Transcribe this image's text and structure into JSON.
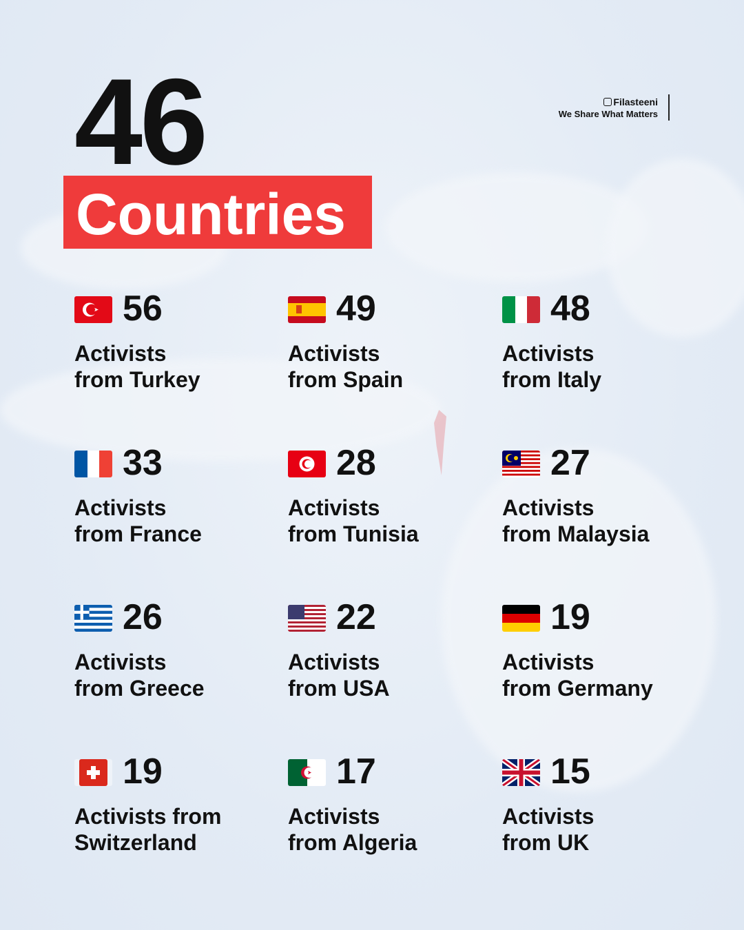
{
  "headline": {
    "number": "46",
    "word": "Countries"
  },
  "brand": {
    "handle": "Filasteeni",
    "tagline": "We Share What Matters",
    "icon": "instagram-icon"
  },
  "accent_color": "#ef3b3b",
  "items": [
    {
      "flag": "turkey",
      "count": "56",
      "line1": "Activists",
      "line2": "from Turkey"
    },
    {
      "flag": "spain",
      "count": "49",
      "line1": "Activists",
      "line2": "from Spain"
    },
    {
      "flag": "italy",
      "count": "48",
      "line1": "Activists",
      "line2": "from Italy"
    },
    {
      "flag": "france",
      "count": "33",
      "line1": "Activists",
      "line2": "from France"
    },
    {
      "flag": "tunisia",
      "count": "28",
      "line1": "Activists",
      "line2": "from Tunisia"
    },
    {
      "flag": "malaysia",
      "count": "27",
      "line1": "Activists",
      "line2": "from Malaysia"
    },
    {
      "flag": "greece",
      "count": "26",
      "line1": "Activists",
      "line2": "from Greece"
    },
    {
      "flag": "usa",
      "count": "22",
      "line1": "Activists",
      "line2": "from USA"
    },
    {
      "flag": "germany",
      "count": "19",
      "line1": "Activists",
      "line2": "from Germany"
    },
    {
      "flag": "switzerland",
      "count": "19",
      "line1": "Activists from",
      "line2": "Switzerland"
    },
    {
      "flag": "algeria",
      "count": "17",
      "line1": "Activists",
      "line2": "from Algeria"
    },
    {
      "flag": "uk",
      "count": "15",
      "line1": "Activists",
      "line2": "from UK"
    }
  ]
}
